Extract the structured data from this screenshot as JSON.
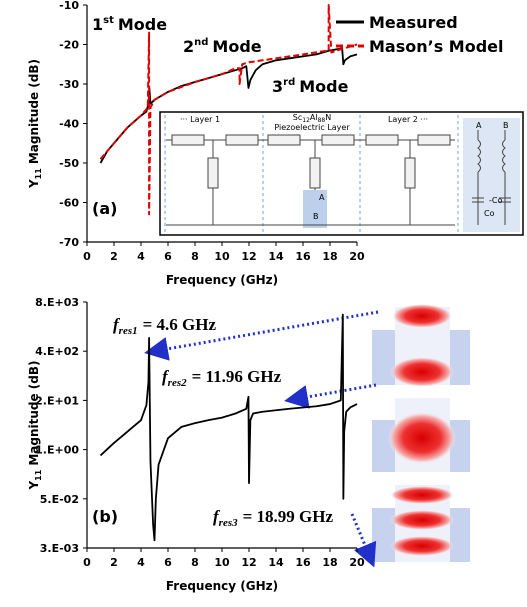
{
  "chart_data": [
    {
      "type": "line",
      "panel_label": "(a)",
      "xlabel": "Frequency (GHz)",
      "ylabel": {
        "main": "Y",
        "sub": "11",
        "rest": "Magnitude (dB)"
      },
      "xlim": [
        0,
        20
      ],
      "xticks": [
        0,
        2,
        4,
        6,
        8,
        10,
        12,
        14,
        16,
        18,
        20
      ],
      "ylim": [
        -70,
        -10
      ],
      "yticks": [
        -10,
        -20,
        -30,
        -40,
        -50,
        -60,
        -70
      ],
      "series": [
        {
          "name": "Measured",
          "color": "#000000",
          "linestyle": "solid",
          "x": [
            1,
            1.5,
            2,
            3,
            4,
            4.4,
            4.55,
            4.62,
            4.7,
            5,
            6,
            7,
            8,
            9,
            10,
            11,
            11.5,
            11.8,
            11.96,
            12.1,
            12.5,
            13,
            14,
            15,
            16,
            17,
            18,
            18.9,
            18.99,
            19.1,
            19.5,
            20
          ],
          "values": [
            -50,
            -47,
            -45,
            -41,
            -38,
            -37,
            -35,
            -31,
            -35,
            -34,
            -32,
            -30.5,
            -29.5,
            -28.5,
            -27.5,
            -26.5,
            -26,
            -25.5,
            -31,
            -29,
            -26.5,
            -25,
            -24,
            -23.5,
            -23,
            -22.5,
            -21.5,
            -21,
            -25,
            -24,
            -23,
            -22.5
          ]
        },
        {
          "name": "Mason’s Model",
          "color": "#e00000",
          "linestyle": "dashed",
          "x": [
            1,
            2,
            3,
            4,
            4.5,
            4.6,
            4.6,
            4.7,
            5,
            6,
            8,
            10,
            11,
            11.3,
            11.3,
            11.5,
            12,
            14,
            16,
            17.9,
            17.9,
            18.1,
            19,
            20
          ],
          "values": [
            -49,
            -45,
            -41,
            -38,
            -36,
            -17,
            -63,
            -36,
            -34,
            -32,
            -29.5,
            -27.5,
            -26,
            -26,
            -30,
            -25,
            -24.5,
            -23.5,
            -22.5,
            -21.5,
            -10,
            -22,
            -21,
            -20
          ]
        }
      ],
      "annotations": [
        {
          "num": "1",
          "sup": "st",
          "text": "Mode"
        },
        {
          "num": "2",
          "sup": "nd",
          "text": "Mode"
        },
        {
          "num": "3",
          "sup": "rd",
          "text": "Mode"
        }
      ],
      "inset": {
        "layer1": "··· Layer 1",
        "material": [
          "Sc",
          "12",
          "Al",
          "88",
          "N"
        ],
        "piezo": "Piezoelectric Layer",
        "layer2": "Layer 2 ···",
        "port": [
          "A",
          "B"
        ],
        "transformer": [
          "A",
          "B"
        ],
        "caps": [
          "-Co",
          "Co"
        ]
      }
    },
    {
      "type": "line",
      "yscale": "log",
      "panel_label": "(b)",
      "xlabel": "Frequency (GHz)",
      "ylabel": {
        "main": "Y",
        "sub": "11",
        "rest": "Magnitude (dB)"
      },
      "xlim": [
        0,
        20
      ],
      "xticks": [
        0,
        2,
        4,
        6,
        8,
        10,
        12,
        14,
        16,
        18,
        20
      ],
      "ylim": [
        0.0025,
        8000
      ],
      "yticks": [
        {
          "value": 8000,
          "label": "8.E+03"
        },
        {
          "value": 400,
          "label": "4.E+02"
        },
        {
          "value": 20,
          "label": "2.E+01"
        },
        {
          "value": 1,
          "label": "1.E+00"
        },
        {
          "value": 0.05,
          "label": "5.E-02"
        },
        {
          "value": 0.0025,
          "label": "3.E-03"
        }
      ],
      "series": [
        {
          "color": "#000000",
          "linestyle": "solid",
          "x": [
            1,
            2,
            3,
            4,
            4.4,
            4.55,
            4.6,
            4.7,
            4.9,
            5.0,
            5.1,
            5.3,
            6,
            7,
            8,
            9,
            10,
            11,
            11.8,
            11.96,
            12.0,
            12.1,
            12.3,
            13,
            14,
            15,
            16,
            17,
            18,
            18.8,
            18.95,
            18.99,
            19.05,
            19.2,
            19.5,
            20
          ],
          "values": [
            0.7,
            1.5,
            3,
            6,
            15,
            60,
            900,
            0.5,
            0.01,
            0.004,
            0.05,
            0.4,
            2,
            4,
            5,
            6,
            7,
            9,
            12,
            25,
            0.13,
            6,
            9,
            10,
            11,
            12,
            13,
            14,
            16,
            20,
            3700,
            0.05,
            3,
            10,
            13,
            16
          ]
        }
      ],
      "annotations": [
        {
          "symbol": "f",
          "sub": "res1",
          "text": "= 4.6 GHz"
        },
        {
          "symbol": "f",
          "sub": "res2",
          "text": "= 11.96 GHz"
        },
        {
          "symbol": "f",
          "sub": "res3",
          "text": "= 18.99 GHz"
        }
      ]
    }
  ]
}
